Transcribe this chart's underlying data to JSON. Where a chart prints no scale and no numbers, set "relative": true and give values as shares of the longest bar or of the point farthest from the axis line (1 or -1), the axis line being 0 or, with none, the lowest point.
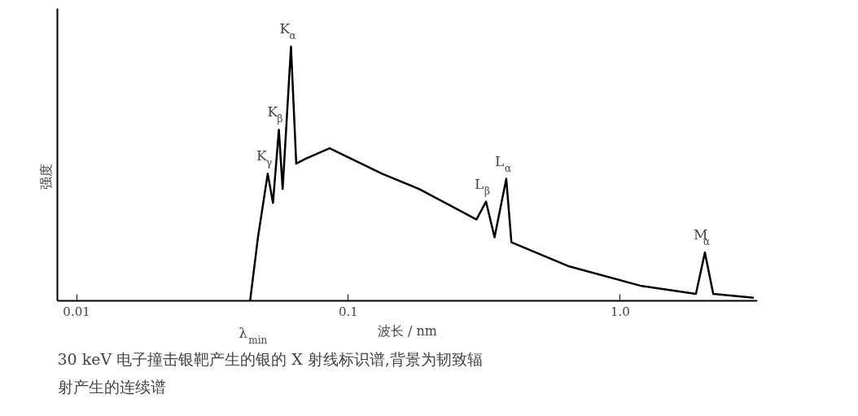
{
  "chart_data": {
    "type": "line",
    "relative": true,
    "log": "x",
    "xlabel": "波长 / nm",
    "ylabel": "强度",
    "xlim": [
      0.0085,
      3.2
    ],
    "xticks": [
      0.01,
      0.1,
      {
        "value": 1,
        "label": "1.0"
      }
    ],
    "grid": false,
    "marker": "none",
    "line_style": "solid",
    "series": [
      {
        "color": "#000000",
        "x": [
          0.0435,
          0.0465,
          0.0505,
          0.0528,
          0.0555,
          0.0573,
          0.0615,
          0.0643,
          0.07,
          0.0853,
          0.133,
          0.182,
          0.296,
          0.321,
          0.345,
          0.381,
          0.398,
          0.65,
          1.2,
          1.9,
          2.05,
          2.2,
          3.1
        ],
        "values": [
          0,
          0.25,
          0.5,
          0.385,
          0.673,
          0.44,
          1.0,
          0.54,
          0.56,
          0.6,
          0.5,
          0.44,
          0.32,
          0.39,
          0.25,
          0.48,
          0.23,
          0.135,
          0.058,
          0.027,
          0.19,
          0.027,
          0.012
        ]
      }
    ],
    "annotations": [
      {
        "text": "K$_{γ}$",
        "x": 0.0505,
        "y": 0.5
      },
      {
        "text": "K$_{β}$",
        "x": 0.0555,
        "y": 0.673
      },
      {
        "text": "K$_{α}$",
        "x": 0.0615,
        "y": 1.0
      },
      {
        "text": "L$_{β}$",
        "x": 0.321,
        "y": 0.39
      },
      {
        "text": "L$_{α}$",
        "x": 0.381,
        "y": 0.48
      },
      {
        "text": "M$_{α}$",
        "x": 2.05,
        "y": 0.19
      },
      {
        "text": "λ$_{min}$",
        "x": 0.0435,
        "y": 0
      },
      "30 keV 电子撞击银靶产生的银的 X 射线标识谱,背景为韧致辐",
      "射产生的连续谱"
    ]
  }
}
